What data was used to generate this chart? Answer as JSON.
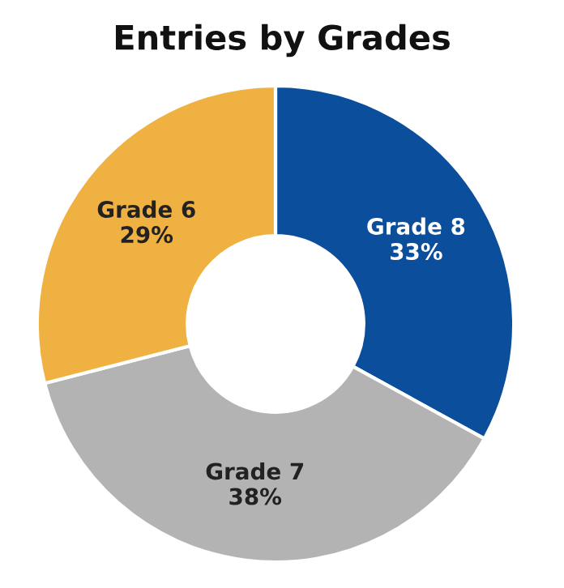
{
  "chart_data": {
    "type": "donut",
    "title": "Entries by Grades",
    "categories": [
      "Grade 8",
      "Grade 7",
      "Grade 6"
    ],
    "values": [
      33,
      38,
      29
    ],
    "value_labels": [
      "33%",
      "38%",
      "29%"
    ],
    "colors": [
      "#0b4f9c",
      "#b3b3b3",
      "#f0b143"
    ],
    "legend": false
  }
}
